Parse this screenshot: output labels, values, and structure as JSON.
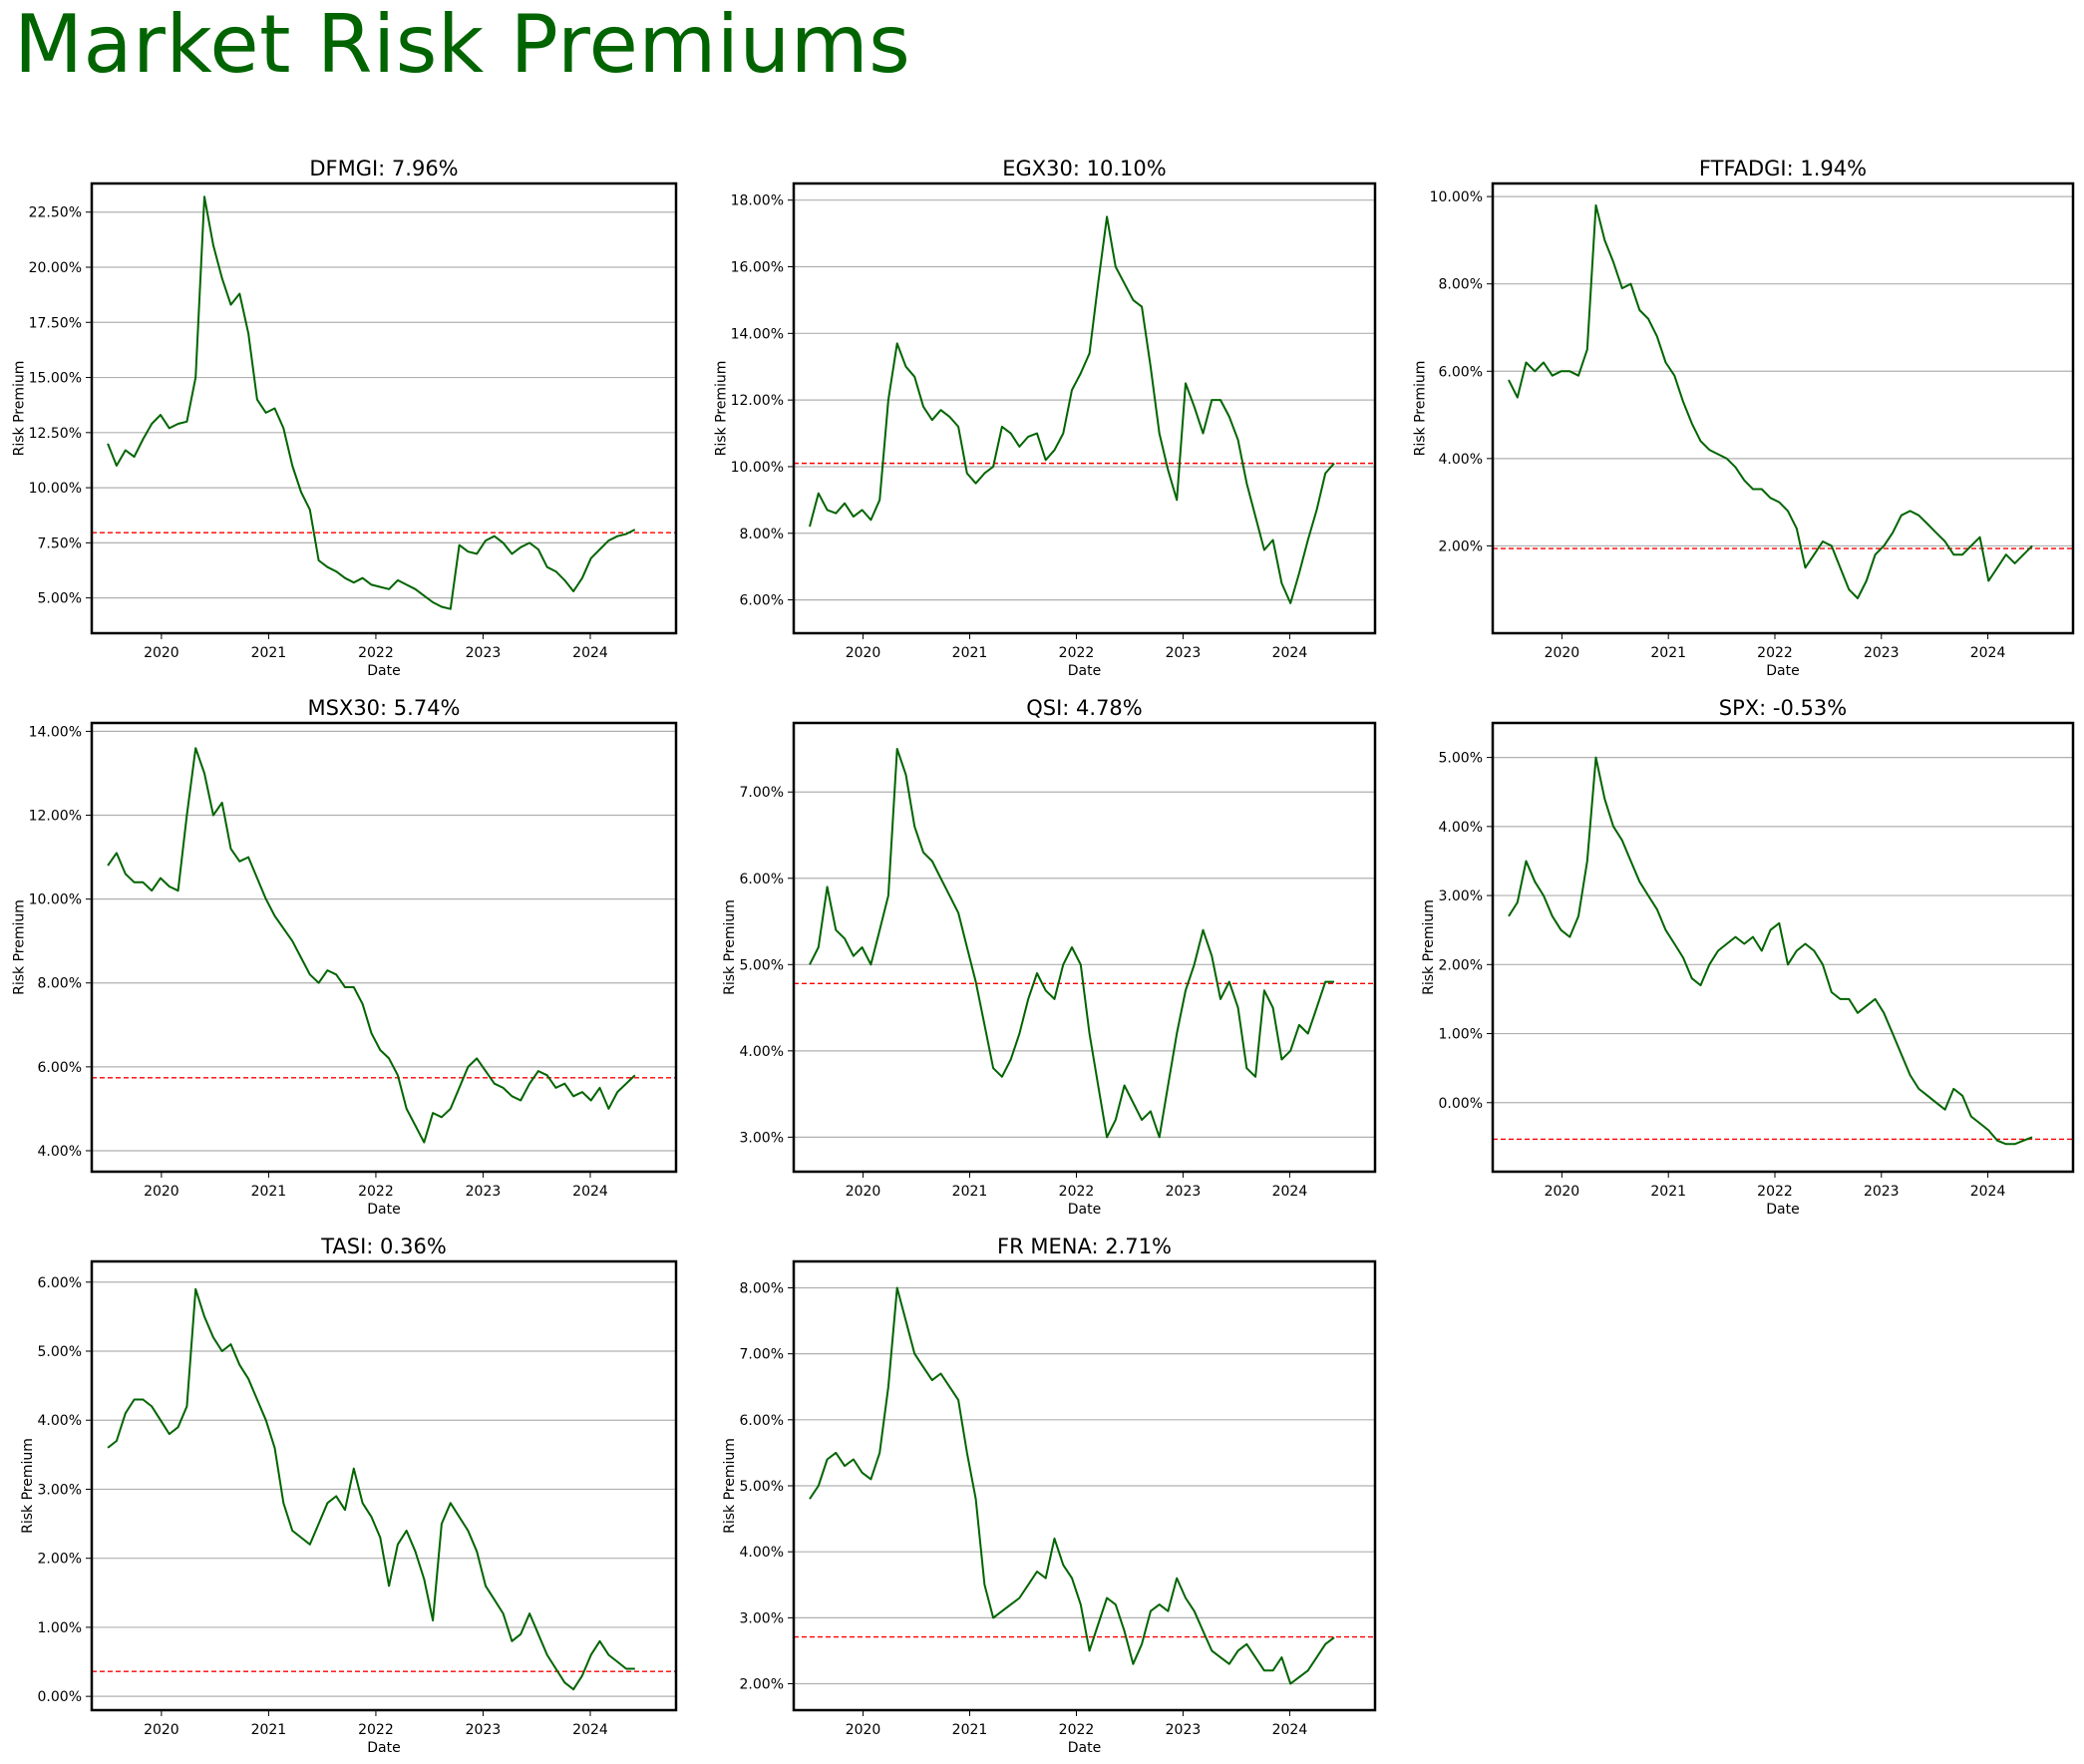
{
  "title": "Market Risk Premiums",
  "colors": {
    "title": "#006400",
    "line": "#006400",
    "reference": "#ff0000",
    "grid": "#b0b0b0",
    "axes": "#000000"
  },
  "chart_data": [
    {
      "type": "line",
      "title": "DFMGI: 7.96%",
      "xlabel": "Date",
      "ylabel": "Risk Premium",
      "x_start": "2019-07",
      "x_end": "2024-06",
      "x_ticks": [
        "2020",
        "2021",
        "2022",
        "2023",
        "2024"
      ],
      "xlim": [
        2019.35,
        2024.8
      ],
      "ylim": [
        3.4,
        23.8
      ],
      "grid": "horizontal",
      "y_ticks": [
        "5.00%",
        "7.50%",
        "10.00%",
        "12.50%",
        "15.00%",
        "17.50%",
        "20.00%",
        "22.50%"
      ],
      "reference_line": 7.96,
      "series": [
        {
          "values": [
            12.0,
            11.0,
            11.7,
            11.4,
            12.2,
            12.9,
            13.3,
            12.7,
            12.9,
            13.0,
            15.0,
            23.2,
            21.0,
            19.5,
            18.3,
            18.8,
            17.0,
            14.0,
            13.4,
            13.6,
            12.7,
            11.0,
            9.8,
            9.0,
            6.7,
            6.4,
            6.2,
            5.9,
            5.7,
            5.9,
            5.6,
            5.5,
            5.4,
            5.8,
            5.6,
            5.4,
            5.1,
            4.8,
            4.6,
            4.5,
            7.4,
            7.1,
            7.0,
            7.6,
            7.8,
            7.5,
            7.0,
            7.3,
            7.5,
            7.2,
            6.4,
            6.2,
            5.8,
            5.3,
            5.9,
            6.8,
            7.2,
            7.6,
            7.8,
            7.9,
            8.1
          ]
        }
      ]
    },
    {
      "type": "line",
      "title": "EGX30: 10.10%",
      "xlabel": "Date",
      "ylabel": "Risk Premium",
      "x_start": "2019-07",
      "x_end": "2024-06",
      "x_ticks": [
        "2020",
        "2021",
        "2022",
        "2023",
        "2024"
      ],
      "xlim": [
        2019.35,
        2024.8
      ],
      "ylim": [
        5.0,
        18.5
      ],
      "grid": "horizontal",
      "y_ticks": [
        "6.00%",
        "8.00%",
        "10.00%",
        "12.00%",
        "14.00%",
        "16.00%",
        "18.00%"
      ],
      "reference_line": 10.1,
      "series": [
        {
          "values": [
            8.2,
            9.2,
            8.7,
            8.6,
            8.9,
            8.5,
            8.7,
            8.4,
            9.0,
            12.0,
            13.7,
            13.0,
            12.7,
            11.8,
            11.4,
            11.7,
            11.5,
            11.2,
            9.8,
            9.5,
            9.8,
            10.0,
            11.2,
            11.0,
            10.6,
            10.9,
            11.0,
            10.2,
            10.5,
            11.0,
            12.3,
            12.8,
            13.4,
            15.5,
            17.5,
            16.0,
            15.5,
            15.0,
            14.8,
            13.0,
            11.0,
            9.9,
            9.0,
            12.5,
            11.8,
            11.0,
            12.0,
            12.0,
            11.5,
            10.8,
            9.5,
            8.5,
            7.5,
            7.8,
            6.5,
            5.9,
            6.8,
            7.8,
            8.7,
            9.8,
            10.1
          ]
        }
      ]
    },
    {
      "type": "line",
      "title": "FTFADGI: 1.94%",
      "xlabel": "Date",
      "ylabel": "Risk Premium",
      "x_start": "2019-07",
      "x_end": "2024-06",
      "x_ticks": [
        "2020",
        "2021",
        "2022",
        "2023",
        "2024"
      ],
      "xlim": [
        2019.35,
        2024.8
      ],
      "ylim": [
        0.0,
        10.3
      ],
      "grid": "horizontal",
      "y_ticks": [
        "2.00%",
        "4.00%",
        "6.00%",
        "8.00%",
        "10.00%"
      ],
      "reference_line": 1.94,
      "series": [
        {
          "values": [
            5.8,
            5.4,
            6.2,
            6.0,
            6.2,
            5.9,
            6.0,
            6.0,
            5.9,
            6.5,
            9.8,
            9.0,
            8.5,
            7.9,
            8.0,
            7.4,
            7.2,
            6.8,
            6.2,
            5.9,
            5.3,
            4.8,
            4.4,
            4.2,
            4.1,
            4.0,
            3.8,
            3.5,
            3.3,
            3.3,
            3.1,
            3.0,
            2.8,
            2.4,
            1.5,
            1.8,
            2.1,
            2.0,
            1.5,
            1.0,
            0.8,
            1.2,
            1.8,
            2.0,
            2.3,
            2.7,
            2.8,
            2.7,
            2.5,
            2.3,
            2.1,
            1.8,
            1.8,
            2.0,
            2.2,
            1.2,
            1.5,
            1.8,
            1.6,
            1.8,
            2.0
          ]
        }
      ]
    },
    {
      "type": "line",
      "title": "MSX30: 5.74%",
      "xlabel": "Date",
      "ylabel": "Risk Premium",
      "x_start": "2019-07",
      "x_end": "2024-06",
      "x_ticks": [
        "2020",
        "2021",
        "2022",
        "2023",
        "2024"
      ],
      "xlim": [
        2019.35,
        2024.8
      ],
      "ylim": [
        3.5,
        14.2
      ],
      "grid": "horizontal",
      "y_ticks": [
        "4.00%",
        "6.00%",
        "8.00%",
        "10.00%",
        "12.00%",
        "14.00%"
      ],
      "reference_line": 5.74,
      "series": [
        {
          "values": [
            10.8,
            11.1,
            10.6,
            10.4,
            10.4,
            10.2,
            10.5,
            10.3,
            10.2,
            12.0,
            13.6,
            13.0,
            12.0,
            12.3,
            11.2,
            10.9,
            11.0,
            10.5,
            10.0,
            9.6,
            9.3,
            9.0,
            8.6,
            8.2,
            8.0,
            8.3,
            8.2,
            7.9,
            7.9,
            7.5,
            6.8,
            6.4,
            6.2,
            5.8,
            5.0,
            4.6,
            4.2,
            4.9,
            4.8,
            5.0,
            5.5,
            6.0,
            6.2,
            5.9,
            5.6,
            5.5,
            5.3,
            5.2,
            5.6,
            5.9,
            5.8,
            5.5,
            5.6,
            5.3,
            5.4,
            5.2,
            5.5,
            5.0,
            5.4,
            5.6,
            5.8
          ]
        }
      ]
    },
    {
      "type": "line",
      "title": "QSI: 4.78%",
      "xlabel": "Date",
      "ylabel": "Risk Premium",
      "x_start": "2019-07",
      "x_end": "2024-06",
      "x_ticks": [
        "2020",
        "2021",
        "2022",
        "2023",
        "2024"
      ],
      "xlim": [
        2019.35,
        2024.8
      ],
      "ylim": [
        2.6,
        7.8
      ],
      "grid": "horizontal",
      "y_ticks": [
        "3.00%",
        "4.00%",
        "5.00%",
        "6.00%",
        "7.00%"
      ],
      "reference_line": 4.78,
      "series": [
        {
          "values": [
            5.0,
            5.2,
            5.9,
            5.4,
            5.3,
            5.1,
            5.2,
            5.0,
            5.4,
            5.8,
            7.5,
            7.2,
            6.6,
            6.3,
            6.2,
            6.0,
            5.8,
            5.6,
            5.2,
            4.8,
            4.3,
            3.8,
            3.7,
            3.9,
            4.2,
            4.6,
            4.9,
            4.7,
            4.6,
            5.0,
            5.2,
            5.0,
            4.2,
            3.6,
            3.0,
            3.2,
            3.6,
            3.4,
            3.2,
            3.3,
            3.0,
            3.6,
            4.2,
            4.7,
            5.0,
            5.4,
            5.1,
            4.6,
            4.8,
            4.5,
            3.8,
            3.7,
            4.7,
            4.5,
            3.9,
            4.0,
            4.3,
            4.2,
            4.5,
            4.8,
            4.8
          ]
        }
      ]
    },
    {
      "type": "line",
      "title": "SPX: -0.53%",
      "xlabel": "Date",
      "ylabel": "Risk Premium",
      "x_start": "2019-07",
      "x_end": "2024-06",
      "x_ticks": [
        "2020",
        "2021",
        "2022",
        "2023",
        "2024"
      ],
      "xlim": [
        2019.35,
        2024.8
      ],
      "ylim": [
        -1.0,
        5.5
      ],
      "grid": "horizontal",
      "y_ticks": [
        "0.00%",
        "1.00%",
        "2.00%",
        "3.00%",
        "4.00%",
        "5.00%"
      ],
      "reference_line": -0.53,
      "series": [
        {
          "values": [
            2.7,
            2.9,
            3.5,
            3.2,
            3.0,
            2.7,
            2.5,
            2.4,
            2.7,
            3.5,
            5.0,
            4.4,
            4.0,
            3.8,
            3.5,
            3.2,
            3.0,
            2.8,
            2.5,
            2.3,
            2.1,
            1.8,
            1.7,
            2.0,
            2.2,
            2.3,
            2.4,
            2.3,
            2.4,
            2.2,
            2.5,
            2.6,
            2.0,
            2.2,
            2.3,
            2.2,
            2.0,
            1.6,
            1.5,
            1.5,
            1.3,
            1.4,
            1.5,
            1.3,
            1.0,
            0.7,
            0.4,
            0.2,
            0.1,
            0.0,
            -0.1,
            0.2,
            0.1,
            -0.2,
            -0.3,
            -0.4,
            -0.55,
            -0.6,
            -0.6,
            -0.55,
            -0.5
          ]
        }
      ]
    },
    {
      "type": "line",
      "title": "TASI: 0.36%",
      "xlabel": "Date",
      "ylabel": "Risk Premium",
      "x_start": "2019-07",
      "x_end": "2024-06",
      "x_ticks": [
        "2020",
        "2021",
        "2022",
        "2023",
        "2024"
      ],
      "xlim": [
        2019.35,
        2024.8
      ],
      "ylim": [
        -0.2,
        6.3
      ],
      "grid": "horizontal",
      "y_ticks": [
        "0.00%",
        "1.00%",
        "2.00%",
        "3.00%",
        "4.00%",
        "5.00%",
        "6.00%"
      ],
      "reference_line": 0.36,
      "series": [
        {
          "values": [
            3.6,
            3.7,
            4.1,
            4.3,
            4.3,
            4.2,
            4.0,
            3.8,
            3.9,
            4.2,
            5.9,
            5.5,
            5.2,
            5.0,
            5.1,
            4.8,
            4.6,
            4.3,
            4.0,
            3.6,
            2.8,
            2.4,
            2.3,
            2.2,
            2.5,
            2.8,
            2.9,
            2.7,
            3.3,
            2.8,
            2.6,
            2.3,
            1.6,
            2.2,
            2.4,
            2.1,
            1.7,
            1.1,
            2.5,
            2.8,
            2.6,
            2.4,
            2.1,
            1.6,
            1.4,
            1.2,
            0.8,
            0.9,
            1.2,
            0.9,
            0.6,
            0.4,
            0.2,
            0.1,
            0.3,
            0.6,
            0.8,
            0.6,
            0.5,
            0.4,
            0.4
          ]
        }
      ]
    },
    {
      "type": "line",
      "title": "FR MENA: 2.71%",
      "xlabel": "Date",
      "ylabel": "Risk Premium",
      "x_start": "2019-07",
      "x_end": "2024-06",
      "x_ticks": [
        "2020",
        "2021",
        "2022",
        "2023",
        "2024"
      ],
      "xlim": [
        2019.35,
        2024.8
      ],
      "ylim": [
        1.6,
        8.4
      ],
      "grid": "horizontal",
      "y_ticks": [
        "2.00%",
        "3.00%",
        "4.00%",
        "5.00%",
        "6.00%",
        "7.00%",
        "8.00%"
      ],
      "reference_line": 2.71,
      "series": [
        {
          "values": [
            4.8,
            5.0,
            5.4,
            5.5,
            5.3,
            5.4,
            5.2,
            5.1,
            5.5,
            6.5,
            8.0,
            7.5,
            7.0,
            6.8,
            6.6,
            6.7,
            6.5,
            6.3,
            5.5,
            4.8,
            3.5,
            3.0,
            3.1,
            3.2,
            3.3,
            3.5,
            3.7,
            3.6,
            4.2,
            3.8,
            3.6,
            3.2,
            2.5,
            2.9,
            3.3,
            3.2,
            2.8,
            2.3,
            2.6,
            3.1,
            3.2,
            3.1,
            3.6,
            3.3,
            3.1,
            2.8,
            2.5,
            2.4,
            2.3,
            2.5,
            2.6,
            2.4,
            2.2,
            2.2,
            2.4,
            2.0,
            2.1,
            2.2,
            2.4,
            2.6,
            2.7
          ]
        }
      ]
    }
  ]
}
